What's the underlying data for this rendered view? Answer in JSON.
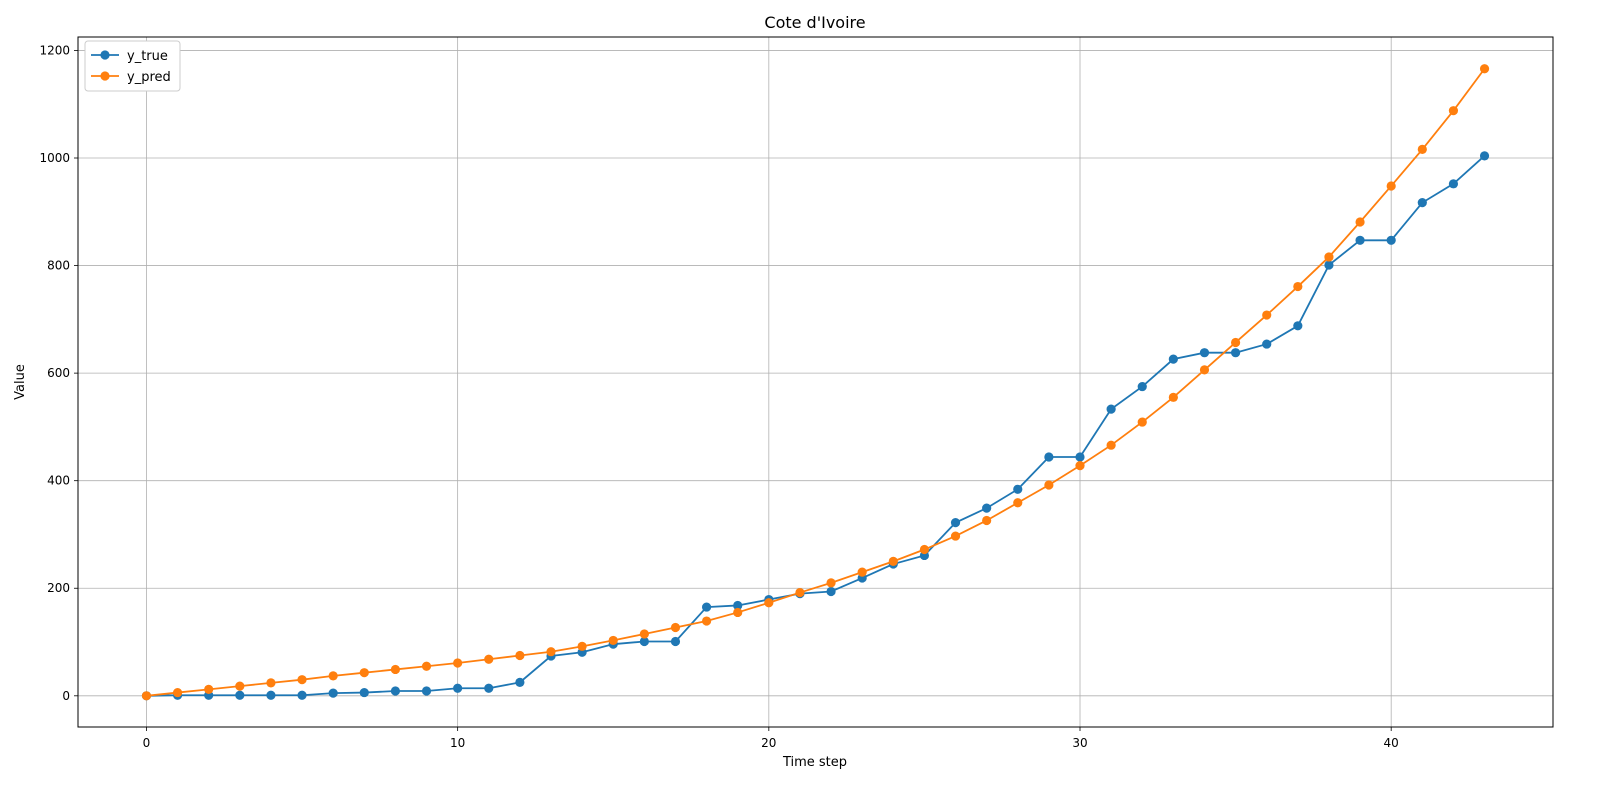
{
  "chart_data": {
    "type": "line",
    "title": "Cote d'Ivoire",
    "xlabel": "Time step",
    "ylabel": "Value",
    "xlim": [
      -2.2,
      45.2
    ],
    "ylim": [
      -58,
      1225
    ],
    "xticks": [
      0,
      10,
      20,
      30,
      40
    ],
    "yticks": [
      0,
      200,
      400,
      600,
      800,
      1000,
      1200
    ],
    "grid": true,
    "legend_position": "top-left",
    "x": [
      0,
      1,
      2,
      3,
      4,
      5,
      6,
      7,
      8,
      9,
      10,
      11,
      12,
      13,
      14,
      15,
      16,
      17,
      18,
      19,
      20,
      21,
      22,
      23,
      24,
      25,
      26,
      27,
      28,
      29,
      30,
      31,
      32,
      33,
      34,
      35,
      36,
      37,
      38,
      39,
      40,
      41,
      42,
      43
    ],
    "series": [
      {
        "name": "y_true",
        "color": "#1f77b4",
        "values": [
          0,
          1,
          1,
          1,
          1,
          1,
          5,
          6,
          9,
          9,
          14,
          14,
          25,
          74,
          81,
          96,
          101,
          101,
          165,
          168,
          179,
          190,
          194,
          219,
          245,
          261,
          322,
          349,
          384,
          444,
          444,
          533,
          575,
          626,
          638,
          638,
          654,
          688,
          801,
          847,
          847,
          917,
          952,
          1004
        ]
      },
      {
        "name": "y_pred",
        "color": "#ff7f0e",
        "values": [
          0,
          6,
          12,
          18,
          24,
          30,
          37,
          43,
          49,
          55,
          61,
          68,
          75,
          82,
          92,
          103,
          115,
          127,
          139,
          155,
          173,
          192,
          210,
          230,
          250,
          272,
          297,
          326,
          359,
          392,
          428,
          466,
          509,
          555,
          606,
          657,
          708,
          761,
          816,
          881,
          948,
          1016,
          1088,
          1166
        ]
      }
    ]
  }
}
